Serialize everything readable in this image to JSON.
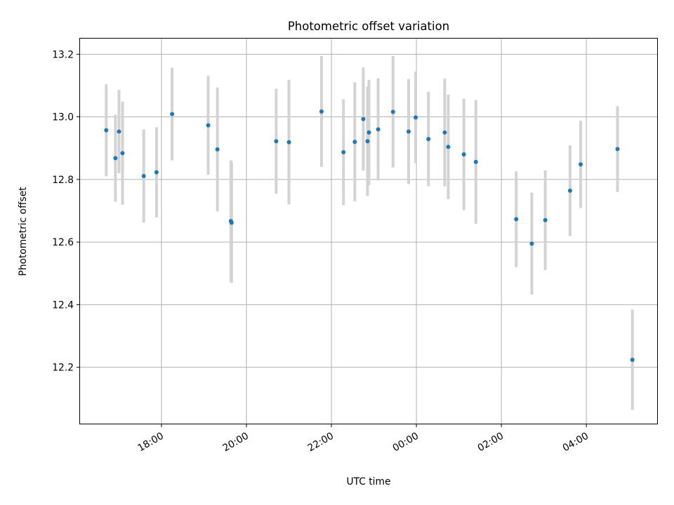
{
  "chart_data": {
    "type": "scatter",
    "title": "Photometric offset variation",
    "xlabel": "UTC time",
    "ylabel": "Photometric offset",
    "x_axis": {
      "type": "time",
      "start": "16:05",
      "end": "05:40",
      "ticks": [
        "18:00",
        "20:00",
        "22:00",
        "00:00",
        "02:00",
        "04:00"
      ]
    },
    "ylim": [
      12.02,
      13.25
    ],
    "yticks": [
      "12.2",
      "12.4",
      "12.6",
      "12.8",
      "13.0",
      "13.2"
    ],
    "grid": true,
    "colors": {
      "point": "#1f77b4",
      "errorbar": "#d3d3d3",
      "grid": "#b0b0b0"
    },
    "points": [
      {
        "x": "16:42",
        "y": 12.957,
        "yerr": 0.147
      },
      {
        "x": "16:55",
        "y": 12.868,
        "yerr": 0.139
      },
      {
        "x": "17:00",
        "y": 12.953,
        "yerr": 0.133
      },
      {
        "x": "17:05",
        "y": 12.884,
        "yerr": 0.165
      },
      {
        "x": "17:35",
        "y": 12.811,
        "yerr": 0.149
      },
      {
        "x": "17:53",
        "y": 12.823,
        "yerr": 0.144
      },
      {
        "x": "18:15",
        "y": 13.009,
        "yerr": 0.148
      },
      {
        "x": "19:06",
        "y": 12.973,
        "yerr": 0.158
      },
      {
        "x": "19:19",
        "y": 12.896,
        "yerr": 0.198
      },
      {
        "x": "19:38",
        "y": 12.667,
        "yerr": 0.194
      },
      {
        "x": "19:39",
        "y": 12.662,
        "yerr": 0.193
      },
      {
        "x": "20:42",
        "y": 12.922,
        "yerr": 0.168
      },
      {
        "x": "21:00",
        "y": 12.919,
        "yerr": 0.199
      },
      {
        "x": "21:46",
        "y": 13.017,
        "yerr": 0.177
      },
      {
        "x": "22:17",
        "y": 12.887,
        "yerr": 0.169
      },
      {
        "x": "22:33",
        "y": 12.92,
        "yerr": 0.19
      },
      {
        "x": "22:45",
        "y": 12.993,
        "yerr": 0.165
      },
      {
        "x": "22:51",
        "y": 12.922,
        "yerr": 0.175
      },
      {
        "x": "22:53",
        "y": 12.95,
        "yerr": 0.168
      },
      {
        "x": "23:06",
        "y": 12.96,
        "yerr": 0.163
      },
      {
        "x": "23:27",
        "y": 13.016,
        "yerr": 0.178
      },
      {
        "x": "23:49",
        "y": 12.953,
        "yerr": 0.168
      },
      {
        "x": "23:59",
        "y": 12.998,
        "yerr": 0.146
      },
      {
        "x": "00:17",
        "y": 12.929,
        "yerr": 0.151
      },
      {
        "x": "00:40",
        "y": 12.95,
        "yerr": 0.172
      },
      {
        "x": "00:45",
        "y": 12.904,
        "yerr": 0.167
      },
      {
        "x": "01:07",
        "y": 12.88,
        "yerr": 0.178
      },
      {
        "x": "01:24",
        "y": 12.856,
        "yerr": 0.198
      },
      {
        "x": "02:21",
        "y": 12.673,
        "yerr": 0.153
      },
      {
        "x": "02:43",
        "y": 12.595,
        "yerr": 0.163
      },
      {
        "x": "03:02",
        "y": 12.67,
        "yerr": 0.159
      },
      {
        "x": "03:37",
        "y": 12.764,
        "yerr": 0.145
      },
      {
        "x": "03:52",
        "y": 12.848,
        "yerr": 0.139
      },
      {
        "x": "04:44",
        "y": 12.897,
        "yerr": 0.137
      },
      {
        "x": "05:05",
        "y": 12.224,
        "yerr": 0.16
      }
    ]
  }
}
